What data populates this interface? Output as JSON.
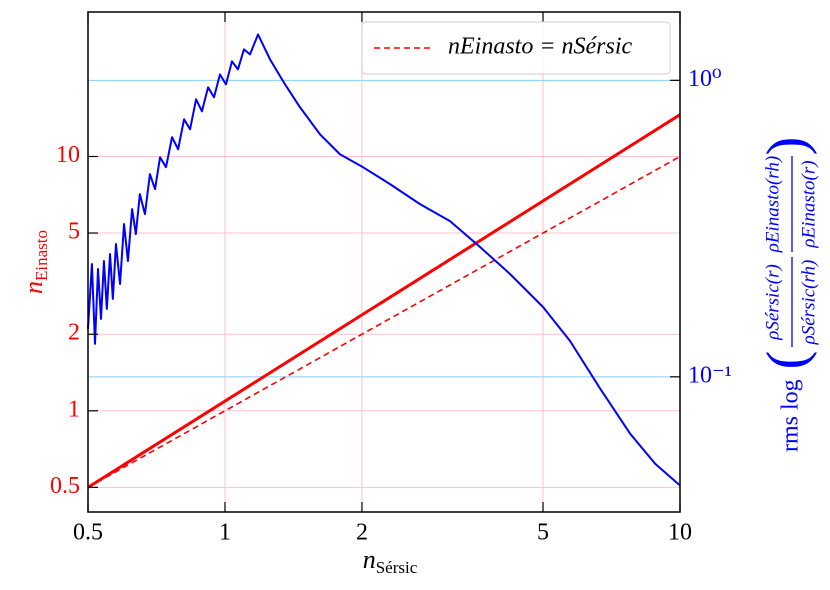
{
  "chart_data": {
    "type": "line",
    "x_label": {
      "base": "n",
      "sub": "Sérsic"
    },
    "y_label": {
      "base": "n",
      "sub": "Einasto"
    },
    "y2_label": {
      "prefix": "rms log",
      "fractions": [
        {
          "num": "ρSérsic(r)",
          "den": "ρSérsic(rh)"
        },
        {
          "num": "ρEinasto(rh)",
          "den": "ρEinasto(r)"
        }
      ]
    },
    "xscale": "log",
    "yscale": "log",
    "y2scale": "log",
    "xlim": [
      0.5,
      10
    ],
    "ylim": [
      0.4,
      37
    ],
    "y2lim": [
      0.035,
      1.7
    ],
    "xticks": [
      0.5,
      1,
      2,
      5,
      10
    ],
    "yticks": [
      0.5,
      1,
      2,
      5,
      10
    ],
    "y2ticks": [
      {
        "value": 0.1,
        "label": "10⁻¹"
      },
      {
        "value": 1,
        "label": "10⁰"
      }
    ],
    "grid": true,
    "grid_color": "#ffc0cb",
    "y2_grid_color": "#87cefa",
    "y_color": "#ff0000",
    "y2_color": "#0000ff",
    "legend": "upper right",
    "series": [
      {
        "color": "#ff0000",
        "x": [
          0.5,
          10
        ],
        "values": [
          0.5,
          14.6
        ]
      },
      {
        "name": "nEinasto = nSérsic",
        "color": "#ff0000",
        "dashed": true,
        "x": [
          0.5,
          10
        ],
        "values": [
          0.5,
          10
        ]
      },
      {
        "color": "#0000ff",
        "axis": "y2",
        "x": [
          0.5,
          0.51,
          0.518,
          0.526,
          0.534,
          0.542,
          0.55,
          0.559,
          0.567,
          0.576,
          0.588,
          0.6,
          0.612,
          0.625,
          0.637,
          0.65,
          0.667,
          0.684,
          0.702,
          0.72,
          0.742,
          0.765,
          0.789,
          0.813,
          0.838,
          0.864,
          0.89,
          0.918,
          0.946,
          0.975,
          1.005,
          1.036,
          1.068,
          1.101,
          1.135,
          1.182,
          1.256,
          1.355,
          1.462,
          1.617,
          1.789,
          2.01,
          2.305,
          2.683,
          3.123,
          3.635,
          4.231,
          5.0,
          5.73,
          6.68,
          7.77,
          8.82,
          10
        ],
        "values": [
          0.1451,
          0.2401,
          0.1292,
          0.231,
          0.1568,
          0.2458,
          0.1694,
          0.2595,
          0.1831,
          0.2804,
          0.2056,
          0.3275,
          0.2458,
          0.3679,
          0.303,
          0.4132,
          0.3538,
          0.4826,
          0.4295,
          0.5504,
          0.5094,
          0.6427,
          0.5855,
          0.7391,
          0.6839,
          0.863,
          0.7862,
          0.9471,
          0.8766,
          1.047,
          0.9694,
          1.159,
          1.089,
          1.272,
          1.223,
          1.428,
          1.177,
          0.9694,
          0.8112,
          0.6577,
          0.5632,
          0.5094,
          0.4466,
          0.3824,
          0.3351,
          0.2741,
          0.2222,
          0.172,
          0.1322,
          0.0911,
          0.0643,
          0.0509,
          0.043
        ]
      }
    ]
  }
}
